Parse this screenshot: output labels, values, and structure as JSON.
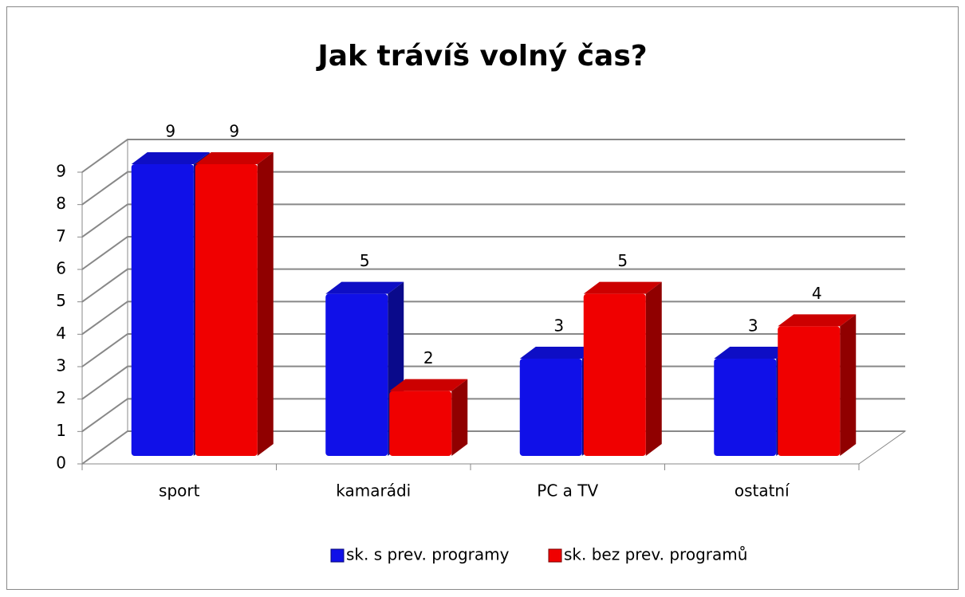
{
  "chart_data": {
    "type": "bar3d",
    "title": "Jak trávíš volný čas?",
    "categories": [
      "sport",
      "kamarádi",
      "PC a TV",
      "ostatní"
    ],
    "series": [
      {
        "name": "sk. s prev. programy",
        "color": "#1010e8",
        "values": [
          9,
          5,
          3,
          3
        ]
      },
      {
        "name": "sk. bez prev. programů",
        "color": "#f00000",
        "values": [
          9,
          2,
          5,
          4
        ]
      }
    ],
    "ylim": [
      0,
      9
    ],
    "yticks": [
      0,
      1,
      2,
      3,
      4,
      5,
      6,
      7,
      8,
      9
    ],
    "grid": true,
    "legend": "bottom"
  }
}
